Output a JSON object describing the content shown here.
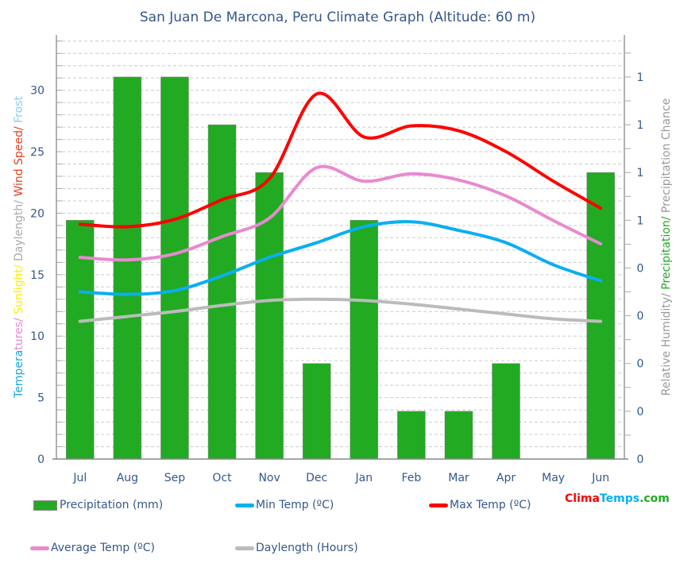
{
  "chart_data": {
    "type": "bar+line",
    "title": "San Juan De Marcona, Peru Climate Graph (Altitude: 60 m)",
    "categories": [
      "Jul",
      "Aug",
      "Sep",
      "Oct",
      "Nov",
      "Dec",
      "Jan",
      "Feb",
      "Mar",
      "Apr",
      "May",
      "Jun"
    ],
    "left_axis": {
      "label_parts": [
        {
          "text": "Tempera",
          "color": "#1aa7e0"
        },
        {
          "text": "tures/",
          "color": "#e88ad0"
        },
        {
          "text": " ",
          "color": "#ff0000"
        },
        {
          "text": "Sunlight/",
          "color": "#ffee00"
        },
        {
          "text": " Daylength/",
          "color": "#aaaaaa"
        },
        {
          "text": " Wind Speed/",
          "color": "#e8401c"
        },
        {
          "text": " Frost",
          "color": "#87cef0"
        }
      ],
      "ticks": [
        "0",
        "5",
        "10",
        "15",
        "20",
        "25",
        "30"
      ],
      "ylim": [
        0,
        34.5
      ]
    },
    "right_axis": {
      "label_parts": [
        {
          "text": "Relative Humidity/",
          "color": "#999999"
        },
        {
          "text": " Precipitation/",
          "color": "#22aa22"
        },
        {
          "text": " Precipitation Chance",
          "color": "#999999"
        }
      ],
      "ticks": [
        "0",
        "0",
        "0",
        "0",
        "0",
        "1",
        "1",
        "1",
        "1"
      ],
      "ylim": [
        0,
        1.11
      ]
    },
    "grid": true,
    "series": [
      {
        "name": "Precipitation (mm)",
        "kind": "bar",
        "axis": "right",
        "color": "#22aa22",
        "values": [
          0.625,
          1.0,
          1.0,
          0.875,
          0.75,
          0.25,
          0.625,
          0.125,
          0.125,
          0.25,
          0,
          0.75
        ]
      },
      {
        "name": "Min Temp (ºC)",
        "kind": "line",
        "axis": "left",
        "color": "#0aaff0",
        "values": [
          13.6,
          13.4,
          13.7,
          14.9,
          16.4,
          17.6,
          18.9,
          19.3,
          18.6,
          17.6,
          15.8,
          14.5
        ]
      },
      {
        "name": "Max Temp (ºC)",
        "kind": "line",
        "axis": "left",
        "color": "#ff0000",
        "values": [
          19.1,
          18.9,
          19.5,
          21.1,
          22.8,
          29.7,
          26.2,
          27.1,
          26.7,
          25.0,
          22.6,
          20.4
        ]
      },
      {
        "name": "Average Temp (ºC)",
        "kind": "line",
        "axis": "left",
        "color": "#e88ad0",
        "values": [
          16.4,
          16.2,
          16.7,
          18.1,
          19.6,
          23.7,
          22.6,
          23.2,
          22.7,
          21.4,
          19.4,
          17.5
        ]
      },
      {
        "name": "Daylength (Hours)",
        "kind": "line",
        "axis": "left",
        "color": "#bbbbbb",
        "values": [
          11.2,
          11.6,
          12.0,
          12.5,
          12.9,
          13.0,
          12.9,
          12.6,
          12.2,
          11.8,
          11.4,
          11.2
        ]
      }
    ],
    "legend_position": "bottom"
  },
  "logo": {
    "parts": [
      {
        "text": "Clima",
        "color": "#ff0000"
      },
      {
        "text": "Temps",
        "color": "#0aaff0"
      },
      {
        "text": ".com",
        "color": "#22aa22"
      }
    ]
  }
}
